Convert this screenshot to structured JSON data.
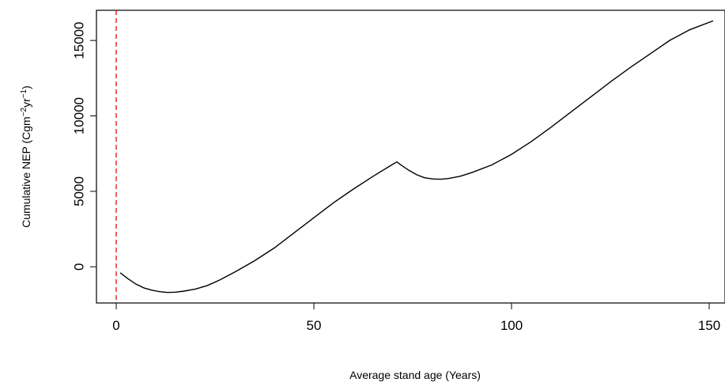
{
  "chart_data": {
    "type": "line",
    "title": "",
    "xlabel": "Average stand age  (Years)",
    "ylabel": {
      "prefix": "Cumulative NEP (Cgm",
      "sup1": "−2",
      "mid": "yr",
      "sup2": "−1",
      "suffix": ")"
    },
    "xlim": [
      -5,
      154
    ],
    "ylim": [
      -2400,
      17000
    ],
    "x_ticks": [
      0,
      50,
      100,
      150
    ],
    "y_ticks": [
      0,
      5000,
      10000,
      15000
    ],
    "grid": false,
    "legend": "none",
    "reference_line": {
      "x": 0,
      "style": "dashed",
      "color": "#e41a1c"
    },
    "line_color": "#000000",
    "series": [
      {
        "x": [
          1,
          3,
          5,
          7,
          9,
          11,
          13,
          15,
          17,
          20,
          23,
          26,
          30,
          35,
          40,
          45,
          50,
          55,
          60,
          65,
          70,
          71,
          72,
          74,
          76,
          78,
          80,
          82,
          84,
          87,
          90,
          95,
          100,
          105,
          110,
          115,
          120,
          125,
          130,
          135,
          140,
          145,
          151
        ],
        "y": [
          -400,
          -800,
          -1150,
          -1400,
          -1550,
          -1650,
          -1700,
          -1680,
          -1620,
          -1480,
          -1250,
          -900,
          -350,
          400,
          1250,
          2250,
          3250,
          4250,
          5150,
          6000,
          6800,
          6950,
          6750,
          6400,
          6100,
          5900,
          5820,
          5800,
          5850,
          6000,
          6250,
          6750,
          7450,
          8300,
          9250,
          10250,
          11250,
          12250,
          13200,
          14100,
          15000,
          15700,
          16300
        ]
      }
    ]
  }
}
